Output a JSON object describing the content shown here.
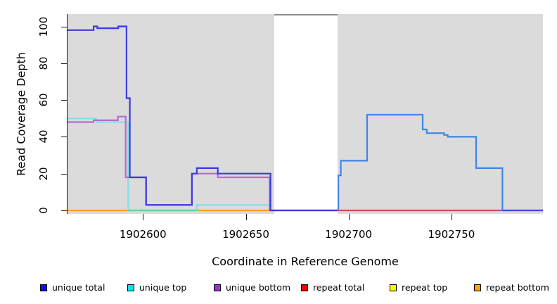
{
  "figure": {
    "panel_bg": "#DBDBDB",
    "gap_band_border": "#8C8C8C",
    "axis_color": "#1a1a1a"
  },
  "chart_data": {
    "type": "line",
    "subtype": "step-coverage-plot",
    "title": "",
    "xlabel": "Coordinate in Reference Genome",
    "ylabel": "Read Coverage Depth",
    "x_range": [
      1902563.3,
      1902794.5
    ],
    "y_range": [
      -1.9,
      106.7
    ],
    "x_ticks": [
      1902600,
      1902650,
      1902700,
      1902750
    ],
    "x_tick_labels": [
      "1902600",
      "1902650",
      "1902700",
      "1902750"
    ],
    "y_ticks": [
      0,
      20,
      40,
      60,
      80,
      100
    ],
    "y_tick_labels": [
      "0",
      "20",
      "40",
      "60",
      "80",
      "100"
    ],
    "grid": false,
    "legend_position": "bottom",
    "gap_region": {
      "x_start": 1902664,
      "x_end": 1902695,
      "note": "white band with no gray background"
    },
    "legend": [
      {
        "label": "unique total",
        "color": "#1010EE"
      },
      {
        "label": "unique top",
        "color": "#00E6E6"
      },
      {
        "label": "unique bottom",
        "color": "#9932CC"
      },
      {
        "label": "repeat total",
        "color": "#EE0000"
      },
      {
        "label": "repeat top",
        "color": "#FCFC00"
      },
      {
        "label": "repeat bottom",
        "color": "#FFA500"
      }
    ],
    "series": [
      {
        "name": "repeat top",
        "line_color": "#FCFC00",
        "visible": false,
        "segments": [
          {
            "start": [
              1902695,
              0
            ],
            "steps": [],
            "end": 1902775
          }
        ]
      },
      {
        "name": "repeat total",
        "line_color": "#D24A63",
        "segments": [
          {
            "start": [
              1902695,
              0
            ],
            "steps": [],
            "end": 1902775
          }
        ]
      },
      {
        "name": "repeat bottom",
        "line_color": "#FF9F1C",
        "segments": [
          {
            "start": [
              1902563.3,
              0
            ],
            "steps": [],
            "end": 1902662
          }
        ]
      },
      {
        "name": "unique top",
        "line_color": "#82DFE9",
        "segments": [
          {
            "start": [
              1902563.3,
              50
            ],
            "steps": [
              [
                1902577.4,
                48
              ],
              [
                1902592.8,
                0
              ]
            ],
            "end": 1902592.8
          },
          {
            "start": [
              1902592.8,
              0
            ],
            "steps": [],
            "end": 1902626.2,
            "color_override": "#6FC9AC"
          },
          {
            "start": [
              1902626.2,
              0
            ],
            "steps": [
              [
                1902626.2,
                3
              ],
              [
                1902662,
                0
              ]
            ],
            "end": 1902663.5
          }
        ]
      },
      {
        "name": "unique bottom",
        "line_color": "#B36BD4",
        "segments": [
          {
            "start": [
              1902563.3,
              48
            ],
            "steps": [
              [
                1902576,
                49
              ],
              [
                1902587.8,
                51
              ],
              [
                1902591.6,
                18
              ],
              [
                1902601.5,
                3
              ],
              [
                1902623.8,
                20
              ],
              [
                1902636.4,
                18
              ],
              [
                1902661.6,
                0
              ]
            ],
            "end": 1902695
          },
          {
            "start": [
              1902775,
              0
            ],
            "steps": [],
            "end": 1902794.5
          }
        ]
      },
      {
        "name": "unique total",
        "line_color": "#3B3BD9",
        "segments": [
          {
            "start": [
              1902563.3,
              98
            ],
            "steps": [
              [
                1902576,
                100
              ],
              [
                1902577.8,
                99
              ],
              [
                1902588,
                100
              ],
              [
                1902592,
                61
              ],
              [
                1902593.6,
                18
              ],
              [
                1902601.5,
                3
              ],
              [
                1902623.8,
                20
              ],
              [
                1902626.2,
                23
              ],
              [
                1902636.4,
                20
              ],
              [
                1902662,
                0
              ]
            ],
            "end": 1902695
          },
          {
            "start": [
              1902775,
              0
            ],
            "steps": [],
            "end": 1902794.5,
            "color_override": "#4A48DE"
          }
        ]
      },
      {
        "name": "coverage right segment",
        "line_color": "#4184E8",
        "segments": [
          {
            "start": [
              1902695,
              0
            ],
            "steps": [
              [
                1902695,
                19
              ],
              [
                1902696.2,
                27
              ],
              [
                1902709,
                52
              ],
              [
                1902736,
                44
              ],
              [
                1902738,
                42
              ],
              [
                1902746.4,
                41
              ],
              [
                1902748.2,
                40
              ],
              [
                1902762,
                23
              ],
              [
                1902774.8,
                0
              ]
            ],
            "end": 1902775
          }
        ]
      }
    ]
  }
}
